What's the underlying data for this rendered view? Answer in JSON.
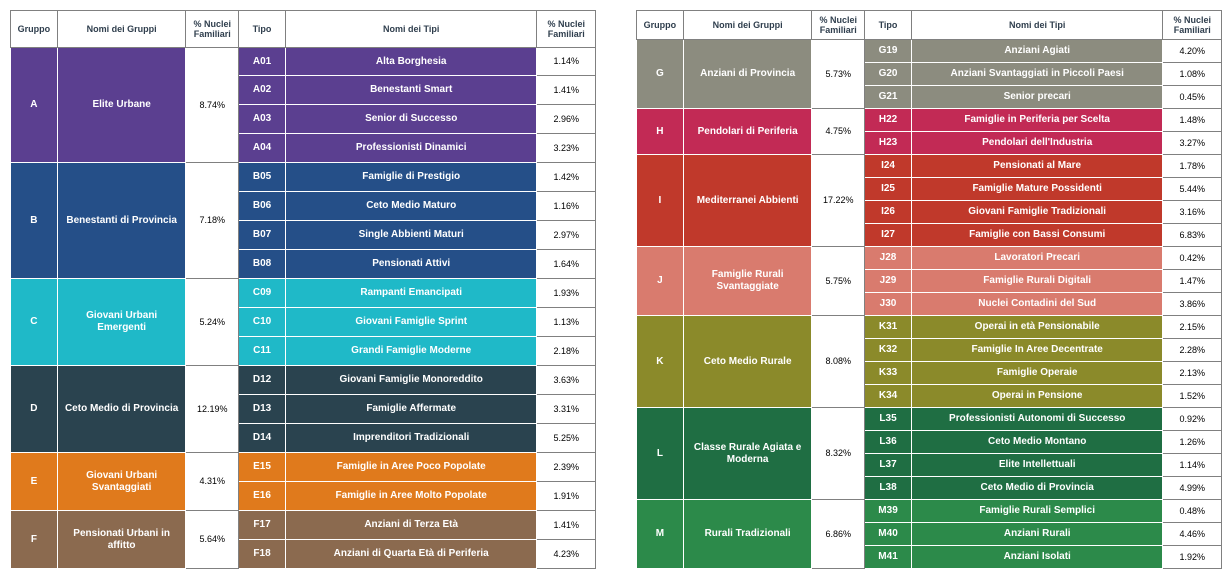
{
  "headers": {
    "gruppo": "Gruppo",
    "nomi_gruppi": "Nomi dei Gruppi",
    "pct_nuclei": "% Nuclei Familiari",
    "tipo": "Tipo",
    "nomi_tipi": "Nomi dei Tipi",
    "pct_nuclei2": "% Nuclei Familiari"
  },
  "left": [
    {
      "code": "A",
      "name": "Elite Urbane",
      "pct": "8.74%",
      "color": "#5b3f90",
      "types": [
        {
          "code": "A01",
          "name": "Alta Borghesia",
          "pct": "1.14%"
        },
        {
          "code": "A02",
          "name": "Benestanti Smart",
          "pct": "1.41%"
        },
        {
          "code": "A03",
          "name": "Senior di Successo",
          "pct": "2.96%"
        },
        {
          "code": "A04",
          "name": "Professionisti Dinamici",
          "pct": "3.23%"
        }
      ]
    },
    {
      "code": "B",
      "name": "Benestanti di Provincia",
      "pct": "7.18%",
      "color": "#254f88",
      "types": [
        {
          "code": "B05",
          "name": "Famiglie di Prestigio",
          "pct": "1.42%"
        },
        {
          "code": "B06",
          "name": "Ceto Medio Maturo",
          "pct": "1.16%"
        },
        {
          "code": "B07",
          "name": "Single Abbienti Maturi",
          "pct": "2.97%"
        },
        {
          "code": "B08",
          "name": "Pensionati Attivi",
          "pct": "1.64%"
        }
      ]
    },
    {
      "code": "C",
      "name": "Giovani Urbani Emergenti",
      "pct": "5.24%",
      "color": "#1fb9c8",
      "types": [
        {
          "code": "C09",
          "name": "Rampanti Emancipati",
          "pct": "1.93%"
        },
        {
          "code": "C10",
          "name": "Giovani Famiglie Sprint",
          "pct": "1.13%"
        },
        {
          "code": "C11",
          "name": "Grandi Famiglie Moderne",
          "pct": "2.18%"
        }
      ]
    },
    {
      "code": "D",
      "name": "Ceto Medio di Provincia",
      "pct": "12.19%",
      "color": "#2a434f",
      "types": [
        {
          "code": "D12",
          "name": "Giovani Famiglie Monoreddito",
          "pct": "3.63%"
        },
        {
          "code": "D13",
          "name": "Famiglie Affermate",
          "pct": "3.31%"
        },
        {
          "code": "D14",
          "name": "Imprenditori Tradizionali",
          "pct": "5.25%"
        }
      ]
    },
    {
      "code": "E",
      "name": "Giovani Urbani Svantaggiati",
      "pct": "4.31%",
      "color": "#e07a1c",
      "types": [
        {
          "code": "E15",
          "name": "Famiglie in Aree Poco Popolate",
          "pct": "2.39%"
        },
        {
          "code": "E16",
          "name": "Famiglie in Aree Molto Popolate",
          "pct": "1.91%"
        }
      ]
    },
    {
      "code": "F",
      "name": "Pensionati Urbani in affitto",
      "pct": "5.64%",
      "color": "#8b6a4f",
      "types": [
        {
          "code": "F17",
          "name": "Anziani di Terza Età",
          "pct": "1.41%"
        },
        {
          "code": "F18",
          "name": "Anziani di Quarta Età di Periferia",
          "pct": "4.23%"
        }
      ]
    }
  ],
  "right": [
    {
      "code": "G",
      "name": "Anziani di Provincia",
      "pct": "5.73%",
      "color": "#8c8c7f",
      "types": [
        {
          "code": "G19",
          "name": "Anziani Agiati",
          "pct": "4.20%"
        },
        {
          "code": "G20",
          "name": "Anziani Svantaggiati  in Piccoli Paesi",
          "pct": "1.08%"
        },
        {
          "code": "G21",
          "name": "Senior precari",
          "pct": "0.45%"
        }
      ]
    },
    {
      "code": "H",
      "name": "Pendolari di Periferia",
      "pct": "4.75%",
      "color": "#c22a55",
      "types": [
        {
          "code": "H22",
          "name": "Famiglie in Periferia per Scelta",
          "pct": "1.48%"
        },
        {
          "code": "H23",
          "name": "Pendolari dell'Industria",
          "pct": "3.27%"
        }
      ]
    },
    {
      "code": "I",
      "name": "Mediterranei Abbienti",
      "pct": "17.22%",
      "color": "#c0392b",
      "types": [
        {
          "code": "I24",
          "name": "Pensionati al Mare",
          "pct": "1.78%"
        },
        {
          "code": "I25",
          "name": "Famiglie Mature Possidenti",
          "pct": "5.44%"
        },
        {
          "code": "I26",
          "name": "Giovani Famiglie Tradizionali",
          "pct": "3.16%"
        },
        {
          "code": "I27",
          "name": "Famiglie con Bassi Consumi",
          "pct": "6.83%"
        }
      ]
    },
    {
      "code": "J",
      "name": "Famiglie Rurali Svantaggiate",
      "pct": "5.75%",
      "color": "#d97b6e",
      "types": [
        {
          "code": "J28",
          "name": "Lavoratori Precari",
          "pct": "0.42%"
        },
        {
          "code": "J29",
          "name": "Famiglie Rurali Digitali",
          "pct": "1.47%"
        },
        {
          "code": "J30",
          "name": "Nuclei Contadini del Sud",
          "pct": "3.86%"
        }
      ]
    },
    {
      "code": "K",
      "name": "Ceto Medio Rurale",
      "pct": "8.08%",
      "color": "#8b8a2a",
      "types": [
        {
          "code": "K31",
          "name": "Operai in età Pensionabile",
          "pct": "2.15%"
        },
        {
          "code": "K32",
          "name": "Famiglie In Aree Decentrate",
          "pct": "2.28%"
        },
        {
          "code": "K33",
          "name": "Famiglie Operaie",
          "pct": "2.13%"
        },
        {
          "code": "K34",
          "name": "Operai in Pensione",
          "pct": "1.52%"
        }
      ]
    },
    {
      "code": "L",
      "name": "Classe Rurale Agiata e Moderna",
      "pct": "8.32%",
      "color": "#1f6e43",
      "types": [
        {
          "code": "L35",
          "name": "Professionisti Autonomi di Successo",
          "pct": "0.92%"
        },
        {
          "code": "L36",
          "name": "Ceto Medio Montano",
          "pct": "1.26%"
        },
        {
          "code": "L37",
          "name": "Elite Intellettuali",
          "pct": "1.14%"
        },
        {
          "code": "L38",
          "name": "Ceto Medio di Provincia",
          "pct": "4.99%"
        }
      ]
    },
    {
      "code": "M",
      "name": "Rurali Tradizionali",
      "pct": "6.86%",
      "color": "#2c8a4a",
      "types": [
        {
          "code": "M39",
          "name": "Famiglie  Rurali Semplici",
          "pct": "0.48%"
        },
        {
          "code": "M40",
          "name": "Anziani Rurali",
          "pct": "4.46%"
        },
        {
          "code": "M41",
          "name": "Anziani Isolati",
          "pct": "1.92%"
        }
      ]
    }
  ]
}
